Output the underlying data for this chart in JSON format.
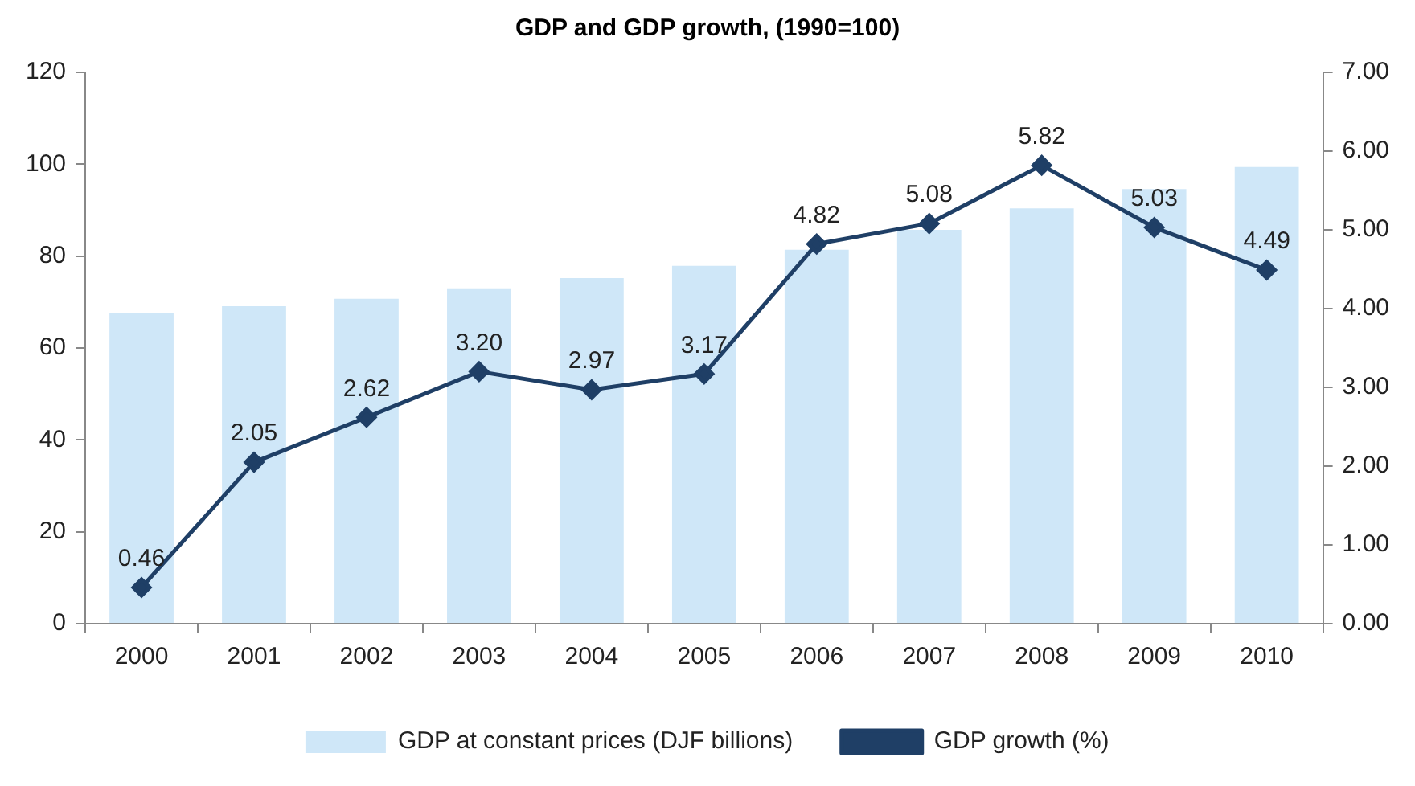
{
  "chart_data": {
    "type": "bar",
    "title": "GDP and GDP growth, (1990=100)",
    "categories": [
      "2000",
      "2001",
      "2002",
      "2003",
      "2004",
      "2005",
      "2006",
      "2007",
      "2008",
      "2009",
      "2010"
    ],
    "series": [
      {
        "name": "GDP at constant prices (DJF billions)",
        "color": "#cfe7f8",
        "values": [
          67.7,
          69.1,
          70.7,
          73.0,
          75.2,
          77.9,
          81.4,
          85.7,
          90.4,
          94.6,
          99.4
        ]
      },
      {
        "name": "GDP growth (%)",
        "type": "line",
        "axis": "y2",
        "color": "#1f3f66",
        "values": [
          0.46,
          2.05,
          2.62,
          3.2,
          2.97,
          3.17,
          4.82,
          5.08,
          5.82,
          5.03,
          4.49
        ],
        "value_labels": [
          "0.46",
          "2.05",
          "2.62",
          "3.20",
          "2.97",
          "3.17",
          "4.82",
          "5.08",
          "5.82",
          "5.03",
          "4.49"
        ]
      }
    ],
    "ylim": [
      0,
      120
    ],
    "yticks": [
      0,
      20,
      40,
      60,
      80,
      100,
      120
    ],
    "y2lim": [
      0,
      7
    ],
    "y2ticks": [
      {
        "value": 0,
        "label": "0.00"
      },
      {
        "value": 1,
        "label": "1.00"
      },
      {
        "value": 2,
        "label": "2.00"
      },
      {
        "value": 3,
        "label": "3.00"
      },
      {
        "value": 4,
        "label": "4.00"
      },
      {
        "value": 5,
        "label": "5.00"
      },
      {
        "value": 6,
        "label": "6.00"
      },
      {
        "value": 7,
        "label": "7.00"
      }
    ],
    "marker": "diamond",
    "grid": false,
    "legend": "bottom"
  }
}
